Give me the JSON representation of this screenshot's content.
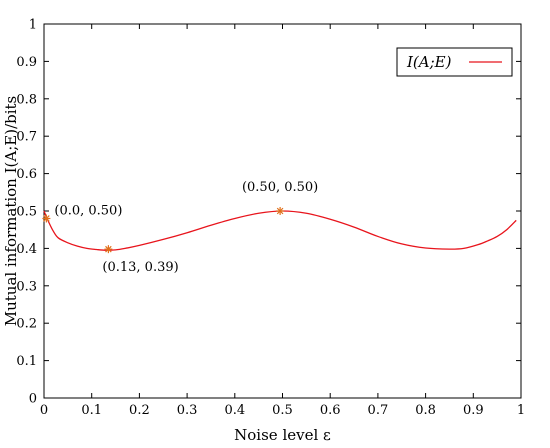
{
  "chart_data": {
    "type": "line",
    "title": "",
    "xlabel": "Noise level ε",
    "ylabel": "Mutual information I(A;E)/bits",
    "xlim": [
      0,
      1
    ],
    "ylim": [
      0,
      1
    ],
    "xticks": [
      "0",
      "0.1",
      "0.2",
      "0.3",
      "0.4",
      "0.5",
      "0.6",
      "0.7",
      "0.8",
      "0.9",
      "1"
    ],
    "yticks": [
      "0",
      "0.1",
      "0.2",
      "0.3",
      "0.4",
      "0.5",
      "0.6",
      "0.7",
      "0.8",
      "0.9",
      "1"
    ],
    "grid": false,
    "legend_position": "top-right",
    "series": [
      {
        "name": "I(A;E)",
        "color": "#e8141c",
        "x": [
          0.0,
          0.01,
          0.02,
          0.03,
          0.05,
          0.07,
          0.09,
          0.11,
          0.13,
          0.15,
          0.17,
          0.2,
          0.25,
          0.3,
          0.35,
          0.4,
          0.45,
          0.5,
          0.55,
          0.6,
          0.65,
          0.7,
          0.75,
          0.8,
          0.85,
          0.88,
          0.91,
          0.93,
          0.95,
          0.97,
          0.99
        ],
        "y": [
          0.5,
          0.47,
          0.445,
          0.428,
          0.415,
          0.406,
          0.4,
          0.397,
          0.395,
          0.396,
          0.4,
          0.408,
          0.424,
          0.442,
          0.462,
          0.48,
          0.494,
          0.5,
          0.494,
          0.478,
          0.457,
          0.432,
          0.412,
          0.401,
          0.398,
          0.4,
          0.41,
          0.42,
          0.432,
          0.45,
          0.475
        ]
      }
    ],
    "markers": [
      {
        "x": 0.005,
        "y": 0.48,
        "label": "(0.0, 0.50)"
      },
      {
        "x": 0.135,
        "y": 0.398,
        "label": "(0.13, 0.39)"
      },
      {
        "x": 0.495,
        "y": 0.5,
        "label": "(0.50, 0.50)"
      }
    ],
    "marker_color": "#e0701a"
  }
}
